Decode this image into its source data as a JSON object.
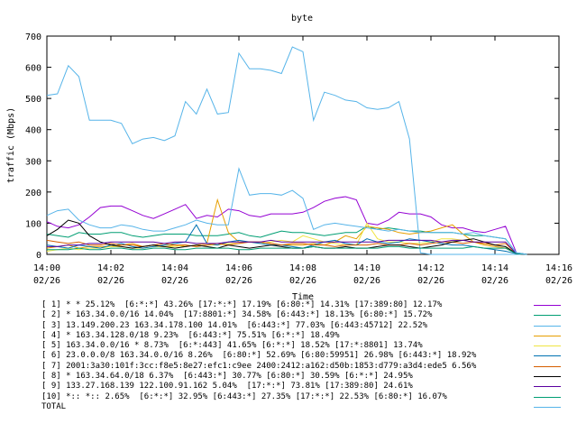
{
  "chart_data": {
    "type": "line",
    "title": "byte",
    "xlabel": "Time",
    "ylabel": "traffic (Mbps)",
    "ylim": [
      0,
      700
    ],
    "yticks": [
      "0",
      "100",
      "200",
      "300",
      "400",
      "500",
      "600",
      "700"
    ],
    "xticks": [
      {
        "time": "14:00",
        "date": "02/26"
      },
      {
        "time": "14:02",
        "date": "02/26"
      },
      {
        "time": "14:04",
        "date": "02/26"
      },
      {
        "time": "14:06",
        "date": "02/26"
      },
      {
        "time": "14:08",
        "date": "02/26"
      },
      {
        "time": "14:10",
        "date": "02/26"
      },
      {
        "time": "14:12",
        "date": "02/26"
      },
      {
        "time": "14:14",
        "date": "02/26"
      },
      {
        "time": "14:16",
        "date": "02/26"
      }
    ],
    "x_minutes": [
      0.0,
      0.33,
      0.67,
      1.0,
      1.33,
      1.67,
      2.0,
      2.33,
      2.67,
      3.0,
      3.33,
      3.67,
      4.0,
      4.33,
      4.67,
      5.0,
      5.33,
      5.67,
      6.0,
      6.33,
      6.67,
      7.0,
      7.33,
      7.67,
      8.0,
      8.33,
      8.67,
      9.0,
      9.33,
      9.67,
      10.0,
      10.33,
      10.67,
      11.0,
      11.33,
      11.67,
      12.0,
      12.33,
      12.67,
      13.0,
      13.33,
      13.67,
      14.0,
      14.33,
      14.67,
      15.0
    ],
    "series": [
      {
        "label": "[ 1] * * 25.12%  [6:*:*] 43.26% [17:*:*] 17.19% [6:80:*] 14.31% [17:389:80] 12.17%",
        "color": "#9400d3",
        "values": [
          105,
          90,
          85,
          95,
          120,
          150,
          155,
          155,
          140,
          125,
          115,
          130,
          145,
          160,
          115,
          125,
          120,
          145,
          140,
          125,
          120,
          130,
          130,
          130,
          135,
          150,
          170,
          180,
          185,
          175,
          100,
          95,
          110,
          135,
          130,
          130,
          120,
          95,
          85,
          85,
          75,
          70,
          80,
          90,
          5,
          0
        ]
      },
      {
        "label": "[ 2] * 163.34.0.0/16 14.04%  [17:8801:*] 34.58% [6:443:*] 18.13% [6:80:*] 15.72%",
        "color": "#009e73",
        "values": [
          65,
          60,
          55,
          70,
          65,
          65,
          70,
          70,
          60,
          55,
          60,
          65,
          65,
          65,
          60,
          60,
          60,
          65,
          70,
          60,
          55,
          65,
          75,
          70,
          70,
          65,
          60,
          65,
          70,
          70,
          90,
          80,
          85,
          80,
          75,
          75,
          70,
          70,
          70,
          65,
          60,
          60,
          55,
          50,
          5,
          0
        ]
      },
      {
        "label": "[ 3] 13.149.200.23 163.34.178.100 14.01%  [6:443:*] 77.03% [6:443:45712] 22.52%",
        "color": "#56b4e9",
        "values": [
          510,
          515,
          605,
          570,
          430,
          430,
          430,
          420,
          355,
          370,
          375,
          365,
          380,
          490,
          450,
          530,
          450,
          455,
          645,
          595,
          595,
          590,
          580,
          665,
          650,
          430,
          520,
          510,
          495,
          490,
          470,
          465,
          470,
          490,
          370,
          5,
          0,
          0,
          0,
          0,
          0,
          0,
          0,
          0,
          0,
          0
        ]
      },
      {
        "label": "[ 4] * 163.34.128.0/18 9.23%  [6:443:*] 75.51% [6:*:*] 18.49%",
        "color": "#e69f00",
        "values": [
          20,
          25,
          30,
          20,
          25,
          25,
          25,
          30,
          35,
          25,
          30,
          25,
          30,
          25,
          30,
          35,
          175,
          70,
          40,
          40,
          40,
          35,
          30,
          30,
          30,
          35,
          30,
          40,
          60,
          50,
          90,
          85,
          80,
          70,
          65,
          70,
          75,
          85,
          95,
          65,
          40,
          30,
          25,
          20,
          2,
          0
        ]
      },
      {
        "label": "[ 5] 163.34.0.0/16 * 8.73%  [6:*:443] 41.65% [6:*:*] 18.52% [17:*:8801] 13.74%",
        "color": "#f0e442",
        "values": [
          10,
          15,
          20,
          15,
          20,
          20,
          25,
          25,
          20,
          20,
          25,
          25,
          25,
          30,
          25,
          30,
          30,
          35,
          35,
          40,
          35,
          40,
          45,
          40,
          60,
          50,
          40,
          35,
          30,
          30,
          100,
          50,
          40,
          40,
          35,
          35,
          40,
          50,
          50,
          45,
          40,
          35,
          30,
          25,
          2,
          0
        ]
      },
      {
        "label": "[ 6] 23.0.0.0/8 163.34.0.0/16 8.26%  [6:80:*] 52.69% [6:80:59951] 26.98% [6:443:*] 18.92%",
        "color": "#0072b2",
        "values": [
          30,
          25,
          20,
          30,
          25,
          20,
          30,
          35,
          25,
          20,
          25,
          30,
          35,
          40,
          95,
          35,
          30,
          40,
          45,
          40,
          35,
          30,
          30,
          25,
          20,
          30,
          40,
          45,
          35,
          30,
          50,
          40,
          35,
          40,
          50,
          45,
          40,
          35,
          30,
          30,
          25,
          20,
          15,
          10,
          2,
          0
        ]
      },
      {
        "label": "[ 7] 2001:3a30:101f:3cc:f8e5:8e27:efc1:c9ee 2400:2412:a162:d50b:1853:d779:a3d4:ede5 6.56%",
        "color": "#d55e00",
        "values": [
          45,
          40,
          35,
          40,
          30,
          30,
          35,
          30,
          30,
          25,
          30,
          35,
          30,
          30,
          25,
          30,
          35,
          30,
          35,
          40,
          40,
          35,
          30,
          35,
          35,
          30,
          30,
          25,
          30,
          30,
          30,
          35,
          30,
          30,
          35,
          30,
          35,
          40,
          40,
          35,
          40,
          35,
          30,
          35,
          2,
          0
        ]
      },
      {
        "label": "[ 8] * 163.34.64.0/18 6.37%  [6:443:*] 30.77% [6:80:*] 30.59% [6:*:*] 24.95%",
        "color": "#000000",
        "values": [
          60,
          80,
          110,
          100,
          60,
          40,
          30,
          25,
          20,
          25,
          30,
          25,
          20,
          25,
          30,
          25,
          20,
          30,
          25,
          20,
          25,
          30,
          25,
          20,
          20,
          25,
          20,
          20,
          25,
          20,
          20,
          25,
          30,
          30,
          25,
          20,
          25,
          30,
          40,
          45,
          50,
          40,
          30,
          25,
          2,
          0
        ]
      },
      {
        "label": "[ 9] 133.27.168.139 122.100.91.162 5.04%  [17:*:*] 73.81% [17:389:80] 24.61%",
        "color": "#5a00a0",
        "values": [
          25,
          25,
          30,
          30,
          35,
          35,
          40,
          40,
          40,
          40,
          40,
          35,
          40,
          40,
          35,
          35,
          35,
          40,
          40,
          40,
          40,
          45,
          40,
          40,
          40,
          40,
          40,
          40,
          40,
          40,
          40,
          40,
          45,
          45,
          45,
          45,
          45,
          40,
          45,
          45,
          40,
          40,
          40,
          40,
          2,
          0
        ]
      },
      {
        "label": "[10] *:: *:: 2.65%  [6:*:*] 32.95% [6:443:*] 27.35% [17:*:*] 22.53% [6:80:*] 16.07%",
        "color": "#009e73",
        "values": [
          15,
          15,
          15,
          20,
          15,
          15,
          20,
          20,
          15,
          15,
          20,
          20,
          15,
          15,
          20,
          20,
          20,
          20,
          15,
          15,
          20,
          20,
          20,
          20,
          20,
          25,
          20,
          20,
          20,
          20,
          20,
          20,
          25,
          25,
          20,
          20,
          20,
          20,
          20,
          20,
          25,
          20,
          20,
          20,
          2,
          0
        ]
      },
      {
        "label": "TOTAL",
        "color": "#56b4e9",
        "values": [
          125,
          140,
          145,
          110,
          95,
          85,
          85,
          95,
          90,
          80,
          75,
          75,
          85,
          95,
          110,
          100,
          95,
          95,
          275,
          190,
          195,
          195,
          190,
          205,
          180,
          80,
          95,
          100,
          95,
          90,
          85,
          80,
          75,
          80,
          75,
          70,
          70,
          70,
          70,
          65,
          70,
          60,
          55,
          50,
          5,
          0
        ]
      }
    ]
  }
}
